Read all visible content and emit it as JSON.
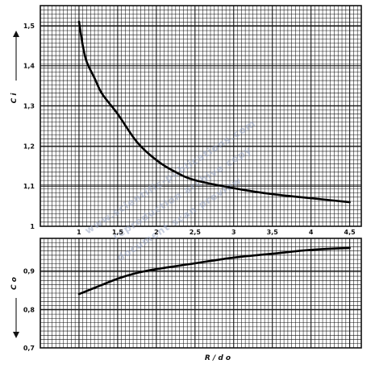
{
  "chart_data": [
    {
      "type": "line",
      "panel": "upper",
      "ylabel": "C i",
      "xlim": [
        0.5,
        4.65
      ],
      "ylim": [
        1.0,
        1.55
      ],
      "y_ticks": [
        "1",
        "1,1",
        "1,2",
        "1,3",
        "1,4",
        "1,5"
      ],
      "y_tick_values": [
        1.0,
        1.1,
        1.2,
        1.3,
        1.4,
        1.5
      ],
      "grid": true,
      "series": [
        {
          "x": [
            1.0,
            1.05,
            1.1,
            1.2,
            1.3,
            1.5,
            1.75,
            2.0,
            2.25,
            2.5,
            3.0,
            3.5,
            4.0,
            4.5
          ],
          "y": [
            1.51,
            1.45,
            1.41,
            1.37,
            1.33,
            1.28,
            1.21,
            1.165,
            1.135,
            1.115,
            1.095,
            1.08,
            1.07,
            1.06
          ]
        }
      ]
    },
    {
      "type": "line",
      "panel": "lower",
      "ylabel": "C o",
      "xlabel": "R / d o",
      "xlim": [
        0.5,
        4.65
      ],
      "ylim": [
        0.7,
        0.985
      ],
      "x_ticks": [
        "1",
        "1,5",
        "2",
        "2,5",
        "3",
        "3,5",
        "4",
        "4,5"
      ],
      "x_tick_values": [
        1.0,
        1.5,
        2.0,
        2.5,
        3.0,
        3.5,
        4.0,
        4.5
      ],
      "y_ticks": [
        "0,7",
        "0,8",
        "0,9"
      ],
      "y_tick_values": [
        0.7,
        0.8,
        0.9
      ],
      "grid": true,
      "series": [
        {
          "x": [
            1.0,
            1.25,
            1.5,
            1.75,
            2.0,
            2.5,
            3.0,
            3.5,
            4.0,
            4.5
          ],
          "y": [
            0.84,
            0.86,
            0.88,
            0.895,
            0.905,
            0.92,
            0.935,
            0.945,
            0.955,
            0.96
          ]
        }
      ]
    }
  ]
}
